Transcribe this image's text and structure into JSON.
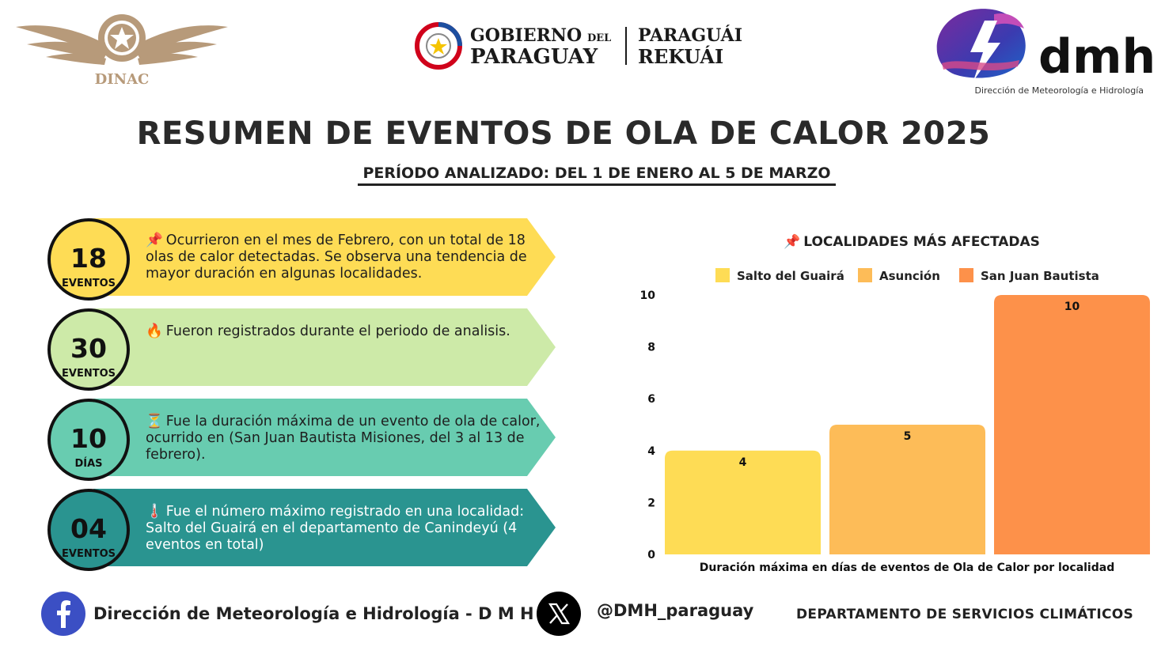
{
  "header": {
    "dinac_label": "DINAC",
    "gov_line1": "GOBIERNO",
    "gov_del": "DEL",
    "gov_line2": "PARAGUAY",
    "gov_right1": "PARAGUÁI",
    "gov_right2": "REKUÁI",
    "dmh_wordmark": "dmh",
    "dmh_subtitle": "Dirección de Meteorología e Hidrología"
  },
  "title": "RESUMEN DE EVENTOS DE OLA DE CALOR 2025",
  "period": "PERÍODO ANALIZADO: DEL 1 DE ENERO AL 5 DE MARZO",
  "cards": [
    {
      "number": "18",
      "unit": "EVENTOS",
      "emoji": "📌",
      "text": "Ocurrieron en el mes de Febrero, con un total de 18 olas de calor detectadas. Se observa una tendencia de mayor duración en algunas localidades.",
      "color": "#fedc55",
      "circle_color": "#fedc55"
    },
    {
      "number": "30",
      "unit": "EVENTOS",
      "emoji": "🔥",
      "text": "Fueron registrados durante el periodo de analisis.",
      "color": "#cdeaa8",
      "circle_color": "#cdeaa8"
    },
    {
      "number": "10",
      "unit": "DÍAS",
      "emoji": "⏳",
      "text": "Fue la duración máxima de un evento de ola de calor, ocurrido en (San Juan Bautista Misiones, del 3 al 13 de febrero).",
      "color": "#68ccb0",
      "circle_color": "#68ccb0"
    },
    {
      "number": "04",
      "unit": "EVENTOS",
      "emoji": "🌡️",
      "text": "Fue el número máximo registrado en una localidad: Salto del Guairá en el departamento de Canindeyú (4 eventos en total)",
      "color": "#2a9490",
      "circle_color": "#2a9490"
    }
  ],
  "chart_data": {
    "type": "bar",
    "title_emoji": "📌",
    "title": "LOCALIDADES MÁS AFECTADAS",
    "categories": [
      "Salto del Guairá",
      "Asunción",
      "San Juan Bautista"
    ],
    "values": [
      4,
      5,
      10
    ],
    "colors": [
      "#fedc55",
      "#fdbc58",
      "#fd914a"
    ],
    "legend": [
      "Salto del Guairá",
      "Asunción",
      "San Juan Bautista"
    ],
    "legend_position": "top",
    "xlabel": "Duración máxima en días de eventos de Ola de Calor por localidad",
    "ylabel": "",
    "ylim": [
      0,
      10
    ],
    "yticks": [
      0,
      2,
      4,
      6,
      8,
      10
    ],
    "data_labels": [
      "4",
      "5",
      "10"
    ],
    "grid": false
  },
  "footer": {
    "facebook_icon": "facebook-icon",
    "facebook_text": "Dirección de Meteorología e Hidrología - D M H",
    "x_icon": "x-twitter-icon",
    "x_handle": "@DMH_paraguay",
    "department": "DEPARTAMENTO DE SERVICIOS CLIMÁTICOS"
  }
}
